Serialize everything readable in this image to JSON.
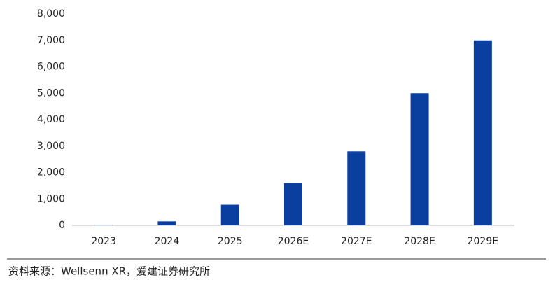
{
  "chart_data": {
    "type": "bar",
    "categories": [
      "2023",
      "2024",
      "2025",
      "2026E",
      "2027E",
      "2028E",
      "2029E"
    ],
    "values": [
      10,
      150,
      780,
      1600,
      2800,
      5000,
      7000
    ],
    "color": "#0b3f9f",
    "ylim": [
      0,
      8000
    ],
    "yticks": [
      0,
      {
        "value": 1000,
        "label": "1,000"
      },
      {
        "value": 2000,
        "label": "2,000"
      },
      {
        "value": 3000,
        "label": "3,000"
      },
      {
        "value": 4000,
        "label": "4,000"
      },
      {
        "value": 5000,
        "label": "5,000"
      },
      {
        "value": 6000,
        "label": "6,000"
      },
      {
        "value": 7000,
        "label": "7,000"
      },
      {
        "value": 8000,
        "label": "8,000"
      }
    ],
    "grid": false,
    "source": "资料来源：Wellsenn XR，爱建证券研究所"
  }
}
